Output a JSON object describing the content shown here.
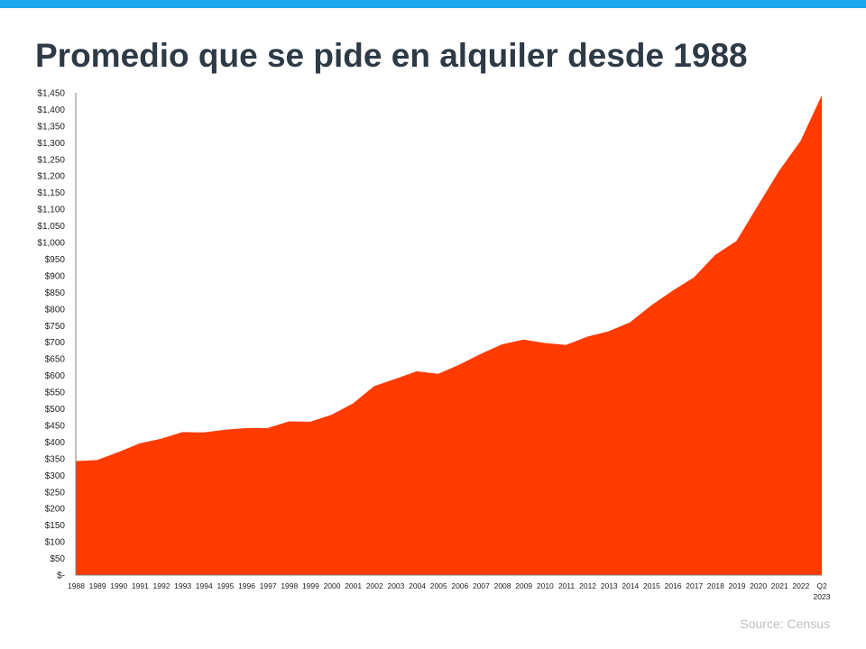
{
  "header": {
    "title": "Promedio que se pide en alquiler desde 1988"
  },
  "footer": {
    "source": "Source: Census"
  },
  "colors": {
    "accent_bar": "#1aa8ea",
    "area_fill": "#ff3b00",
    "title_text": "#2e3a46",
    "axis_text": "#222222"
  },
  "chart_data": {
    "type": "area",
    "title": "Promedio que se pide en alquiler desde 1988",
    "xlabel": "",
    "ylabel": "",
    "ylim": [
      0,
      1450
    ],
    "grid": false,
    "categories": [
      "1988",
      "1989",
      "1990",
      "1991",
      "1992",
      "1993",
      "1994",
      "1995",
      "1996",
      "1997",
      "1998",
      "1999",
      "2000",
      "2001",
      "2002",
      "2003",
      "2004",
      "2005",
      "2006",
      "2007",
      "2008",
      "2009",
      "2010",
      "2011",
      "2012",
      "2013",
      "2014",
      "2015",
      "2016",
      "2017",
      "2018",
      "2019",
      "2020",
      "2021",
      "2022",
      "Q2 2023"
    ],
    "values": [
      343,
      346,
      370,
      396,
      410,
      430,
      429,
      437,
      442,
      442,
      462,
      461,
      482,
      516,
      568,
      590,
      613,
      605,
      633,
      665,
      694,
      708,
      698,
      692,
      717,
      733,
      760,
      811,
      855,
      895,
      963,
      1005,
      1111,
      1216,
      1305,
      1443
    ],
    "y_ticks": [
      "$-",
      "$50",
      "$100",
      "$150",
      "$200",
      "$250",
      "$300",
      "$350",
      "$400",
      "$450",
      "$500",
      "$550",
      "$600",
      "$650",
      "$700",
      "$750",
      "$800",
      "$850",
      "$900",
      "$950",
      "$1,000",
      "$1,050",
      "$1,100",
      "$1,150",
      "$1,200",
      "$1,250",
      "$1,300",
      "$1,350",
      "$1,400",
      "$1,450"
    ]
  }
}
